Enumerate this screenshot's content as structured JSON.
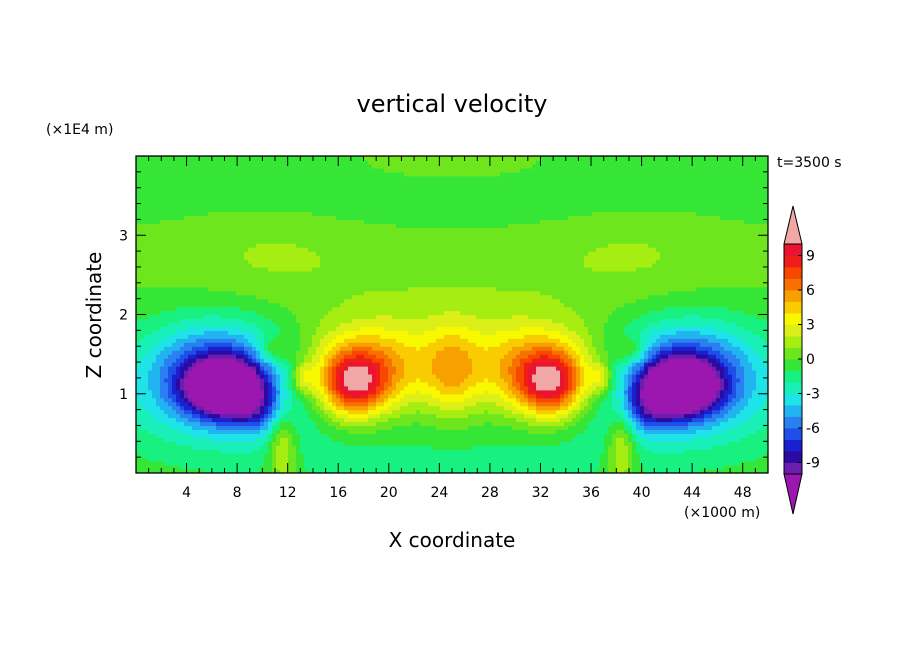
{
  "chart_data": {
    "type": "heatmap",
    "title": "vertical velocity",
    "xlabel": "X coordinate",
    "ylabel": "Z coordinate",
    "x_unit": "(×1000 m)",
    "y_unit": "(×1E4 m)",
    "time_label": "t=3500 s",
    "xlim": [
      0,
      50
    ],
    "ylim": [
      0,
      4
    ],
    "x_ticks": [
      4,
      8,
      12,
      16,
      20,
      24,
      28,
      32,
      36,
      40,
      44,
      48
    ],
    "y_ticks": [
      1,
      2,
      3
    ],
    "colorbar": {
      "levels": [
        -10,
        -9,
        -8,
        -7,
        -6,
        -5,
        -4,
        -3,
        -2,
        -1,
        0,
        1,
        2,
        3,
        4,
        5,
        6,
        7,
        8,
        9,
        10
      ],
      "tick_labels": [
        "9",
        "6",
        "3",
        "0",
        "-3",
        "-6",
        "-9"
      ],
      "tick_values": [
        9,
        6,
        3,
        0,
        -3,
        -6,
        -9
      ],
      "under_color": "#9b17b0",
      "over_color": "#f2a7a7",
      "colors": [
        "#6a1fb0",
        "#2a0aa0",
        "#1a20d0",
        "#1e50e8",
        "#2a80f0",
        "#22b4f0",
        "#1ee4e8",
        "#18f0b8",
        "#18f080",
        "#36e636",
        "#6ee61e",
        "#a6ee12",
        "#dcf018",
        "#f8f800",
        "#f8cc00",
        "#f8a000",
        "#f87000",
        "#f84800",
        "#f01e18",
        "#e81430"
      ]
    },
    "features": [
      {
        "name": "left downdraft",
        "x": 7,
        "z": 1.1,
        "min": -10
      },
      {
        "name": "right downdraft",
        "x": 43,
        "z": 1.1,
        "min": -10
      },
      {
        "name": "left updraft",
        "x": 17,
        "z": 1.1,
        "max": 9
      },
      {
        "name": "right updraft",
        "x": 32.5,
        "z": 1.1,
        "max": 9
      },
      {
        "name": "central column",
        "x": 25,
        "z": 1.3,
        "max": 6
      }
    ]
  }
}
